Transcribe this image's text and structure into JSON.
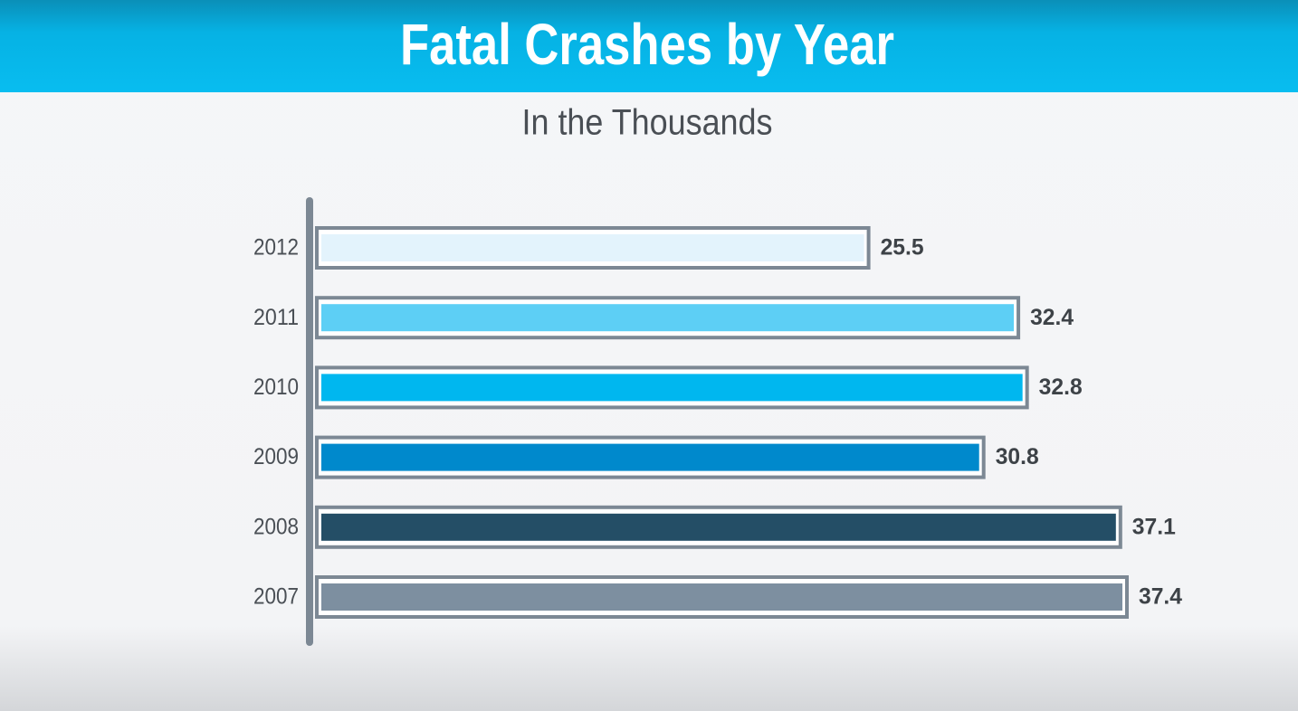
{
  "chart_data": {
    "type": "bar",
    "orientation": "horizontal",
    "title": "Fatal Crashes by Year",
    "subtitle": "In the Thousands",
    "categories": [
      "2012",
      "2011",
      "2010",
      "2009",
      "2008",
      "2007"
    ],
    "values": [
      25.5,
      32.4,
      32.8,
      30.8,
      37.1,
      37.4
    ],
    "colors": [
      "#e3f3fc",
      "#5dcff5",
      "#00b7ef",
      "#0089cc",
      "#244e66",
      "#7d8fa0"
    ]
  }
}
